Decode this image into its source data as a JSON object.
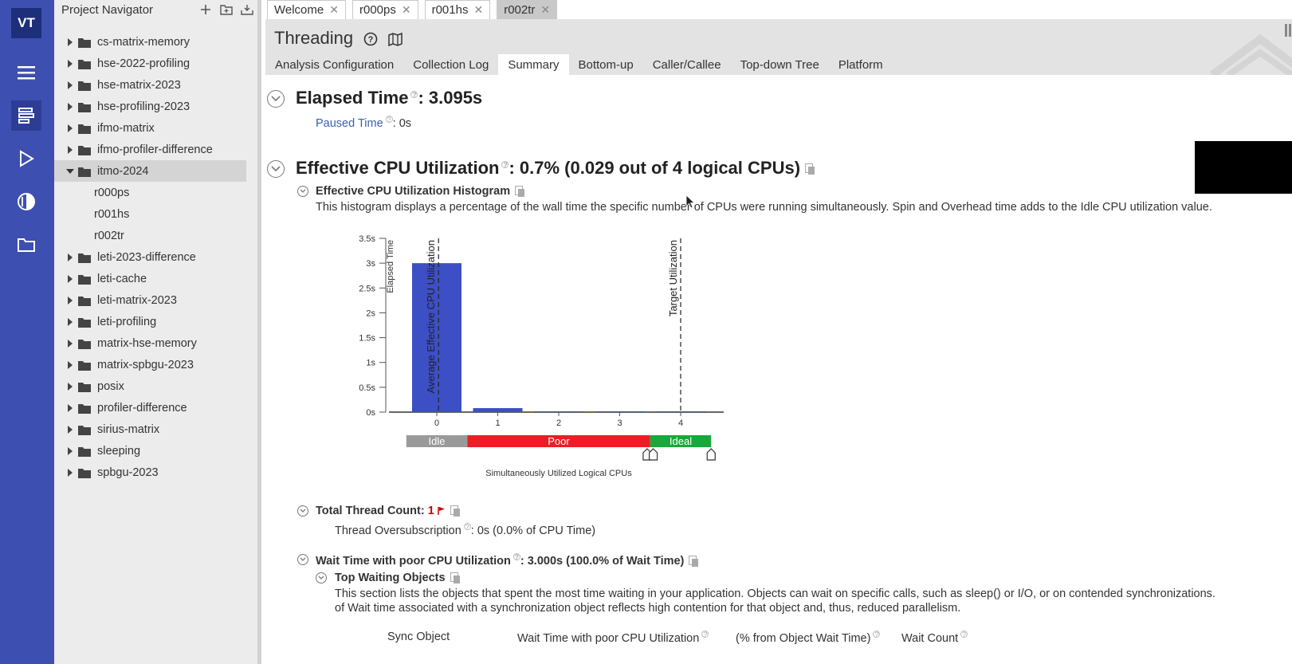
{
  "app": {
    "logo_text": "VT",
    "accent": "#3d4fb0"
  },
  "rail": {
    "icons": [
      "menu-icon",
      "summary-icon",
      "run-icon",
      "analysis-icon",
      "folder-icon"
    ]
  },
  "navigator": {
    "title": "Project Navigator",
    "items": [
      {
        "label": "cs-matrix-memory",
        "expanded": false
      },
      {
        "label": "hse-2022-profiling",
        "expanded": false
      },
      {
        "label": "hse-matrix-2023",
        "expanded": false
      },
      {
        "label": "hse-profiling-2023",
        "expanded": false
      },
      {
        "label": "ifmo-matrix",
        "expanded": false
      },
      {
        "label": "ifmo-profiler-difference",
        "expanded": false
      },
      {
        "label": "itmo-2024",
        "expanded": true,
        "selected": true
      },
      {
        "label": "r000ps",
        "child": true
      },
      {
        "label": "r001hs",
        "child": true
      },
      {
        "label": "r002tr",
        "child": true
      },
      {
        "label": "leti-2023-difference",
        "expanded": false
      },
      {
        "label": "leti-cache",
        "expanded": false
      },
      {
        "label": "leti-matrix-2023",
        "expanded": false
      },
      {
        "label": "leti-profiling",
        "expanded": false
      },
      {
        "label": "matrix-hse-memory",
        "expanded": false
      },
      {
        "label": "matrix-spbgu-2023",
        "expanded": false
      },
      {
        "label": "posix",
        "expanded": false
      },
      {
        "label": "profiler-difference",
        "expanded": false
      },
      {
        "label": "sirius-matrix",
        "expanded": false
      },
      {
        "label": "sleeping",
        "expanded": false
      },
      {
        "label": "spbgu-2023",
        "expanded": false
      }
    ]
  },
  "tabs": [
    {
      "label": "Welcome"
    },
    {
      "label": "r000ps"
    },
    {
      "label": "r001hs"
    },
    {
      "label": "r002tr",
      "active": true
    }
  ],
  "header": {
    "title": "Threading"
  },
  "subtabs": [
    {
      "label": "Analysis Configuration"
    },
    {
      "label": "Collection Log"
    },
    {
      "label": "Summary",
      "active": true
    },
    {
      "label": "Bottom-up"
    },
    {
      "label": "Caller/Callee"
    },
    {
      "label": "Top-down Tree"
    },
    {
      "label": "Platform"
    }
  ],
  "summary": {
    "elapsed_label": "Elapsed Time",
    "elapsed_value": ": 3.095s",
    "paused_label": "Paused Time",
    "paused_value": "0s",
    "cpu_label": "Effective CPU Utilization",
    "cpu_value": ": 0.7% (0.029 out of 4 logical CPUs)",
    "hist_title": "Effective CPU Utilization Histogram",
    "hist_desc": "This histogram displays a percentage of the wall time the specific number of CPUs were running simultaneously. Spin and Overhead time adds to the Idle CPU utilization value.",
    "thread_count_label": "Total Thread Count:",
    "thread_count_value": "1",
    "oversub_label": "Thread Oversubscription",
    "oversub_value": "0s (0.0% of CPU Time)",
    "wait_label": "Wait Time with poor CPU Utilization",
    "wait_value": ": 3.000s (100.0% of Wait Time)",
    "top_wait_title": "Top Waiting Objects",
    "top_wait_desc1": "This section lists the objects that spent the most time waiting in your application. Objects can wait on specific calls, such as sleep() or I/O, or on contended synchronizations.",
    "top_wait_desc2": "of Wait time associated with a synchronization object reflects high contention for that object and, thus, reduced parallelism.",
    "table_headers": [
      "Sync Object",
      "Wait Time with poor CPU Utilization",
      "(% from Object Wait Time)",
      "Wait Count"
    ]
  },
  "chart_data": {
    "type": "bar",
    "x": [
      0,
      1,
      2,
      3,
      4
    ],
    "values": [
      3.0,
      0.07,
      0.0,
      0.0,
      0.0
    ],
    "ylabel": "Elapsed Time",
    "xlabel": "Simultaneously Utilized Logical CPUs",
    "yticks": [
      "0s",
      "0.5s",
      "1s",
      "1.5s",
      "2s",
      "2.5s",
      "3s",
      "3.5s"
    ],
    "xticks": [
      "0",
      "1",
      "2",
      "3",
      "4"
    ],
    "ylim": [
      0,
      3.5
    ],
    "markers": [
      {
        "label": "Average Effective CPU Utilization",
        "x": 0.029
      },
      {
        "label": "Target Utilization",
        "x": 4
      }
    ],
    "zones": [
      {
        "label": "Idle",
        "from": -0.5,
        "to": 0.5,
        "color": "#9a9a9a"
      },
      {
        "label": "Poor",
        "from": 0.5,
        "to": 3.5,
        "color": "#ee1c25"
      },
      {
        "label": "Ideal",
        "from": 3.5,
        "to": 4.5,
        "color": "#19a83a"
      }
    ],
    "bar_color": "#3d4fc4"
  }
}
